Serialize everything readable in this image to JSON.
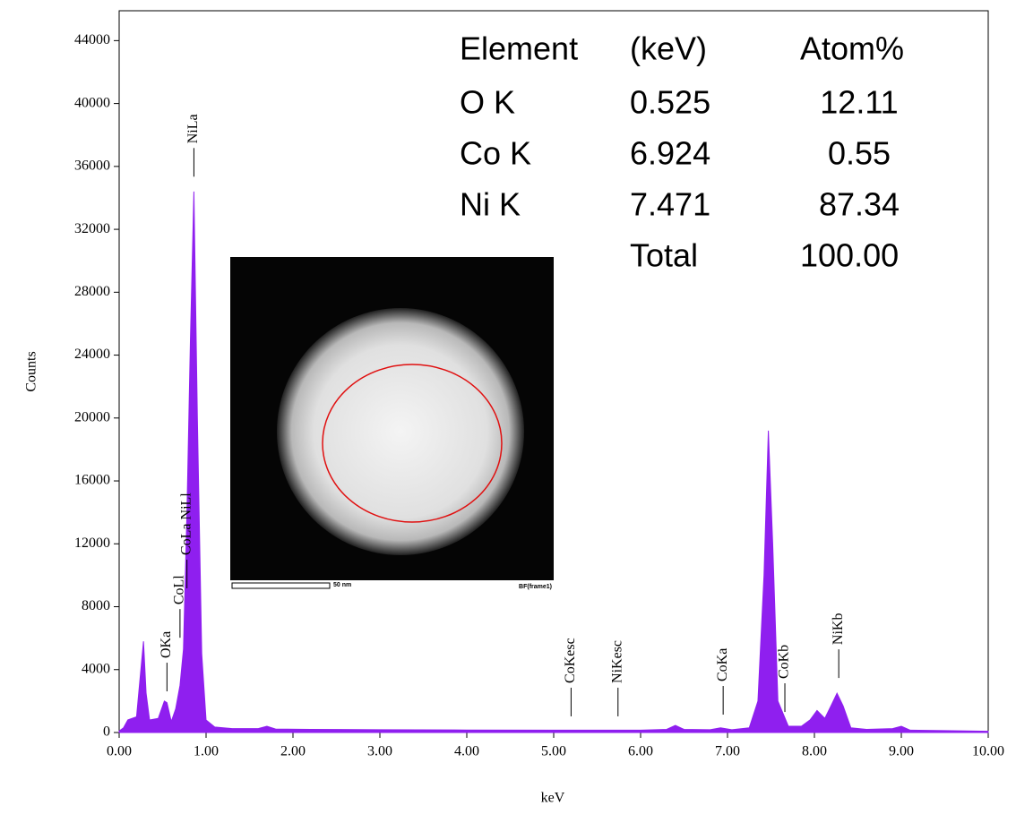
{
  "chart_data": {
    "type": "area",
    "x_label": "keV",
    "y_label": "Counts",
    "color": "#8f1fef",
    "x": [
      0.0,
      0.05,
      0.1,
      0.2,
      0.25,
      0.28,
      0.31,
      0.35,
      0.45,
      0.52,
      0.55,
      0.6,
      0.65,
      0.7,
      0.74,
      0.78,
      0.82,
      0.86,
      0.9,
      0.95,
      1.0,
      1.1,
      1.3,
      1.6,
      1.7,
      1.8,
      2.2,
      3.0,
      4.0,
      5.0,
      6.0,
      6.3,
      6.4,
      6.5,
      6.8,
      6.92,
      7.05,
      7.25,
      7.35,
      7.42,
      7.47,
      7.52,
      7.58,
      7.7,
      7.85,
      7.95,
      8.03,
      8.12,
      8.2,
      8.26,
      8.33,
      8.42,
      8.6,
      8.9,
      9.0,
      9.1,
      9.5,
      10.0
    ],
    "values": [
      100,
      300,
      800,
      1000,
      4000,
      5800,
      2500,
      800,
      900,
      2000,
      1900,
      700,
      1500,
      3000,
      5300,
      14000,
      25000,
      34400,
      20000,
      5000,
      800,
      350,
      250,
      250,
      400,
      220,
      200,
      180,
      160,
      150,
      150,
      200,
      450,
      200,
      180,
      300,
      180,
      300,
      2000,
      10000,
      19200,
      12000,
      2000,
      400,
      400,
      800,
      1400,
      900,
      1800,
      2500,
      1700,
      300,
      200,
      250,
      400,
      150,
      120,
      80
    ],
    "xlim": [
      0,
      10
    ],
    "ylim": [
      0,
      45900
    ],
    "xticks": [
      {
        "value": 0,
        "label": "0.00"
      },
      {
        "value": 1,
        "label": "1.00"
      },
      {
        "value": 2,
        "label": "2.00"
      },
      {
        "value": 3,
        "label": "3.00"
      },
      {
        "value": 4,
        "label": "4.00"
      },
      {
        "value": 5,
        "label": "5.00"
      },
      {
        "value": 6,
        "label": "6.00"
      },
      {
        "value": 7,
        "label": "7.00"
      },
      {
        "value": 8,
        "label": "8.00"
      },
      {
        "value": 9,
        "label": "9.00"
      },
      {
        "value": 10,
        "label": "10.00"
      }
    ],
    "yticks": [
      0,
      4000,
      8000,
      12000,
      16000,
      20000,
      24000,
      28000,
      32000,
      36000,
      40000,
      44000
    ],
    "peak_labels": [
      {
        "label": "OKa",
        "x": 0.55,
        "y": 4440
      },
      {
        "label": "CoLl",
        "x": 0.7,
        "y": 7850
      },
      {
        "label": "CoLa NiLl",
        "x": 0.78,
        "y": 10990
      },
      {
        "label": "NiLa",
        "x": 0.86,
        "y": 37170
      },
      {
        "label": "CoKesc",
        "x": 5.2,
        "y": 2850
      },
      {
        "label": "NiKesc",
        "x": 5.74,
        "y": 2850
      },
      {
        "label": "CoKa",
        "x": 6.95,
        "y": 2960
      },
      {
        "label": "CoKb",
        "x": 7.66,
        "y": 3130
      },
      {
        "label": "NiKb",
        "x": 8.28,
        "y": 5290
      }
    ]
  },
  "table": {
    "header": [
      "Element",
      "(keV)",
      "Atom%"
    ],
    "rows": [
      [
        "O  K",
        "0.525",
        "12.11"
      ],
      [
        "Co K",
        "6.924",
        "0.55"
      ],
      [
        "Ni K",
        "7.471",
        "87.34"
      ]
    ],
    "total": {
      "label": "Total",
      "value": "100.00"
    }
  },
  "inset": {
    "scale_label": "50 nm",
    "frame_label": "BF(frame1)"
  }
}
